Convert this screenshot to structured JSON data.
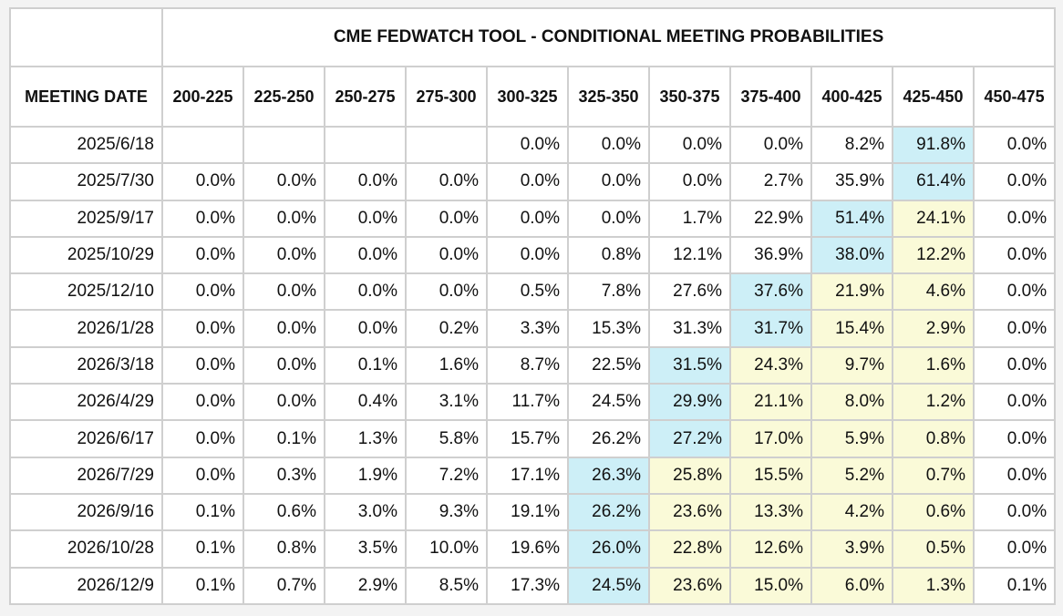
{
  "title": "CME FEDWATCH TOOL - CONDITIONAL MEETING PROBABILITIES",
  "date_header": "MEETING DATE",
  "ranges": [
    "200-225",
    "225-250",
    "250-275",
    "275-300",
    "300-325",
    "325-350",
    "350-375",
    "375-400",
    "400-425",
    "425-450",
    "450-475"
  ],
  "rows": [
    {
      "date": "2025/6/18",
      "values": [
        "",
        "",
        "",
        "",
        "0.0%",
        "0.0%",
        "0.0%",
        "0.0%",
        "8.2%",
        "91.8%",
        "0.0%"
      ]
    },
    {
      "date": "2025/7/30",
      "values": [
        "0.0%",
        "0.0%",
        "0.0%",
        "0.0%",
        "0.0%",
        "0.0%",
        "0.0%",
        "2.7%",
        "35.9%",
        "61.4%",
        "0.0%"
      ]
    },
    {
      "date": "2025/9/17",
      "values": [
        "0.0%",
        "0.0%",
        "0.0%",
        "0.0%",
        "0.0%",
        "0.0%",
        "1.7%",
        "22.9%",
        "51.4%",
        "24.1%",
        "0.0%"
      ]
    },
    {
      "date": "2025/10/29",
      "values": [
        "0.0%",
        "0.0%",
        "0.0%",
        "0.0%",
        "0.0%",
        "0.8%",
        "12.1%",
        "36.9%",
        "38.0%",
        "12.2%",
        "0.0%"
      ]
    },
    {
      "date": "2025/12/10",
      "values": [
        "0.0%",
        "0.0%",
        "0.0%",
        "0.0%",
        "0.5%",
        "7.8%",
        "27.6%",
        "37.6%",
        "21.9%",
        "4.6%",
        "0.0%"
      ]
    },
    {
      "date": "2026/1/28",
      "values": [
        "0.0%",
        "0.0%",
        "0.0%",
        "0.2%",
        "3.3%",
        "15.3%",
        "31.3%",
        "31.7%",
        "15.4%",
        "2.9%",
        "0.0%"
      ]
    },
    {
      "date": "2026/3/18",
      "values": [
        "0.0%",
        "0.0%",
        "0.1%",
        "1.6%",
        "8.7%",
        "22.5%",
        "31.5%",
        "24.3%",
        "9.7%",
        "1.6%",
        "0.0%"
      ]
    },
    {
      "date": "2026/4/29",
      "values": [
        "0.0%",
        "0.0%",
        "0.4%",
        "3.1%",
        "11.7%",
        "24.5%",
        "29.9%",
        "21.1%",
        "8.0%",
        "1.2%",
        "0.0%"
      ]
    },
    {
      "date": "2026/6/17",
      "values": [
        "0.0%",
        "0.1%",
        "1.3%",
        "5.8%",
        "15.7%",
        "26.2%",
        "27.2%",
        "17.0%",
        "5.9%",
        "0.8%",
        "0.0%"
      ]
    },
    {
      "date": "2026/7/29",
      "values": [
        "0.0%",
        "0.3%",
        "1.9%",
        "7.2%",
        "17.1%",
        "26.3%",
        "25.8%",
        "15.5%",
        "5.2%",
        "0.7%",
        "0.0%"
      ]
    },
    {
      "date": "2026/9/16",
      "values": [
        "0.1%",
        "0.6%",
        "3.0%",
        "9.3%",
        "19.1%",
        "26.2%",
        "23.6%",
        "13.3%",
        "4.2%",
        "0.6%",
        "0.0%"
      ]
    },
    {
      "date": "2026/10/28",
      "values": [
        "0.1%",
        "0.8%",
        "3.5%",
        "10.0%",
        "19.6%",
        "26.0%",
        "22.8%",
        "12.6%",
        "3.9%",
        "0.5%",
        "0.0%"
      ]
    },
    {
      "date": "2026/12/9",
      "values": [
        "0.1%",
        "0.7%",
        "2.9%",
        "8.5%",
        "17.3%",
        "24.5%",
        "23.6%",
        "15.0%",
        "6.0%",
        "1.3%",
        "0.1%"
      ]
    }
  ],
  "colors": {
    "max_cell": "#cdeff7",
    "current_rate_region": "#fafad8",
    "border": "#cfcfcf"
  },
  "current_target_range_col": 9
}
